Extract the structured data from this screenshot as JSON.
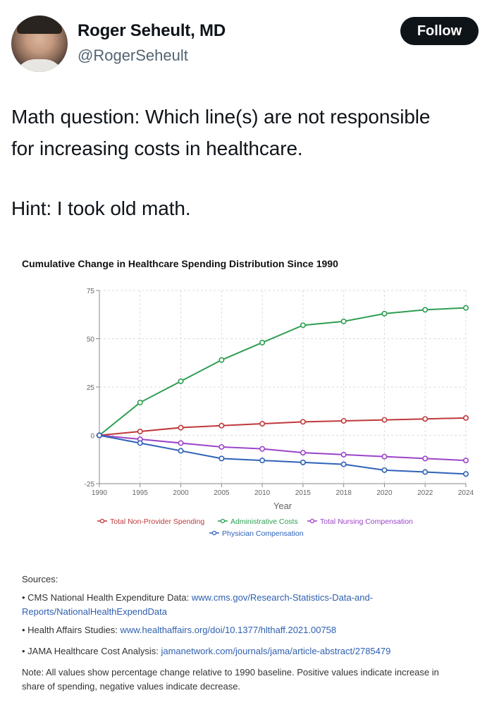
{
  "tweet": {
    "author_name": "Roger Seheult, MD",
    "author_handle": "@RogerSeheult",
    "follow_label": "Follow",
    "text_line1": "Math question: Which line(s) are not responsible",
    "text_line2": "for increasing costs in healthcare.",
    "text_line3": "Hint: I took old math."
  },
  "chart_data": {
    "type": "line",
    "title": "Cumulative Change in Healthcare Spending Distribution Since 1990",
    "xlabel": "Year",
    "ylabel": "",
    "categories": [
      "1990",
      "1995",
      "2000",
      "2005",
      "2010",
      "2015",
      "2018",
      "2020",
      "2022",
      "2024"
    ],
    "ylim": [
      -25,
      75
    ],
    "yticks": [
      -25,
      0,
      25,
      50,
      75
    ],
    "grid": true,
    "legend_position": "bottom",
    "series": [
      {
        "name": "Total Non-Provider Spending",
        "color": "#c0393b",
        "values": [
          0,
          2,
          4,
          5,
          6,
          7,
          7.5,
          8,
          8.5,
          9
        ]
      },
      {
        "name": "Administrative Costs",
        "color": "#2e9e52",
        "values": [
          0,
          17,
          28,
          39,
          48,
          57,
          59,
          63,
          65,
          66
        ]
      },
      {
        "name": "Total Nursing Compensation",
        "color": "#9b44c8",
        "values": [
          0,
          -2,
          -4,
          -6,
          -7,
          -9,
          -10,
          -11,
          -12,
          -13
        ]
      },
      {
        "name": "Physician Compensation",
        "color": "#2f62b8",
        "values": [
          0,
          -4,
          -8,
          -12,
          -13,
          -14,
          -15,
          -18,
          -19,
          -20
        ]
      }
    ]
  },
  "sources": {
    "heading": "Sources:",
    "cms_label": "• CMS National Health Expenditure Data: ",
    "cms_link_a": "www.cms.gov/Research-Statistics-Data-and-",
    "cms_link_b": "Reports/NationalHealthExpendData",
    "ha_label": "• Health Affairs Studies: ",
    "ha_link": "www.healthaffairs.org/doi/10.1377/hlthaff.2021.00758",
    "jama_label": "• JAMA Healthcare Cost Analysis: ",
    "jama_link": "jamanetwork.com/journals/jama/article-abstract/2785479",
    "note_a": "Note: All values show percentage change relative to 1990 baseline. Positive values indicate increase in",
    "note_b": "share of spending, negative values indicate decrease."
  }
}
